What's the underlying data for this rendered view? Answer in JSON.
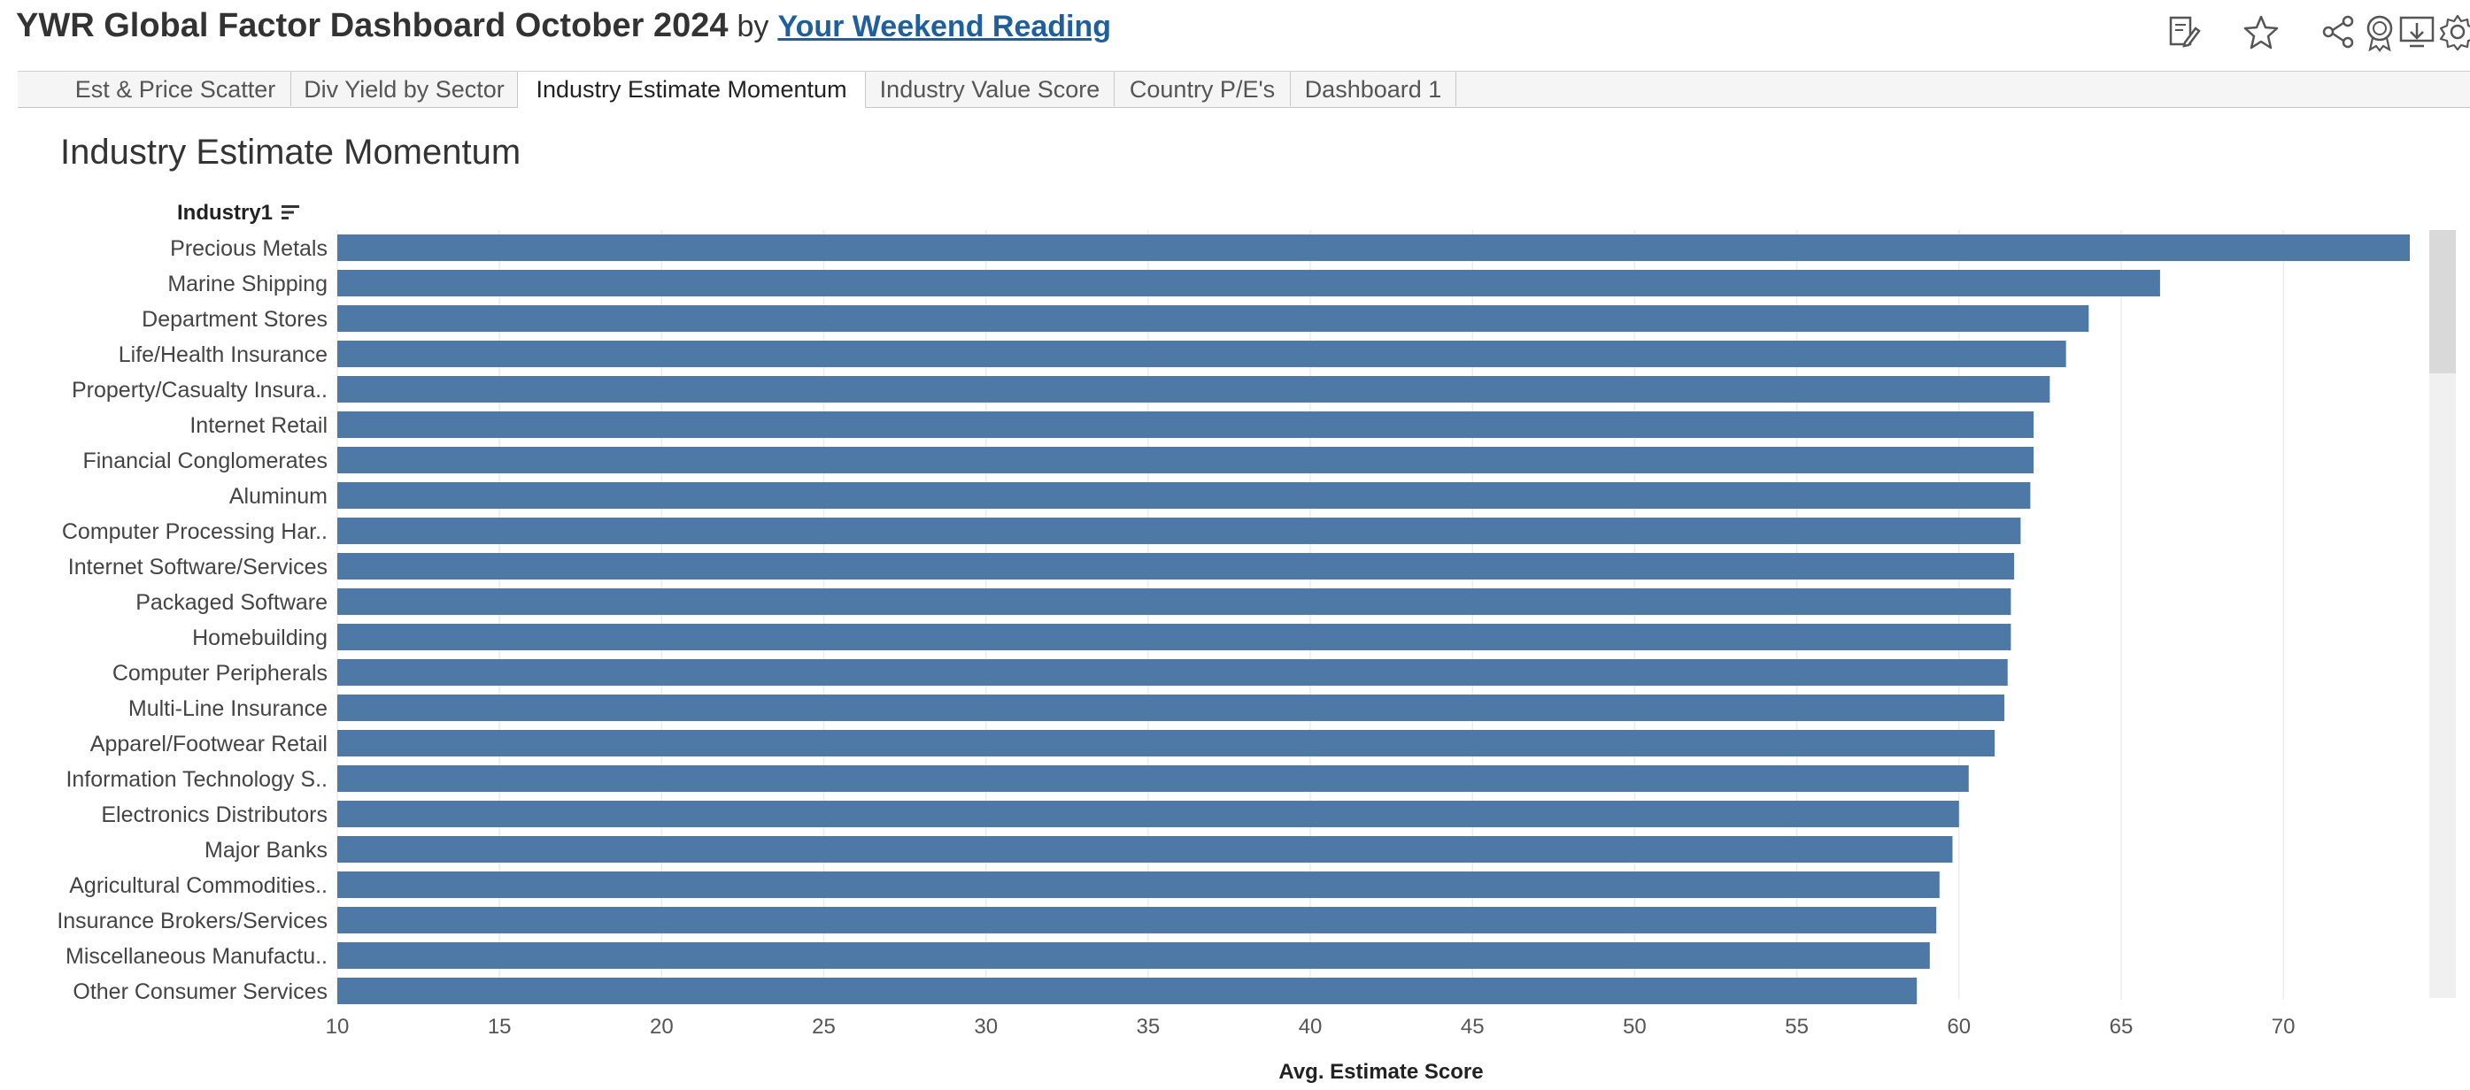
{
  "header": {
    "title": "YWR Global Factor Dashboard October 2024",
    "by": "by",
    "link": "Your Weekend Reading"
  },
  "toolbar": {
    "icons": [
      "edit-icon",
      "star-icon",
      "share-icon",
      "download-icon",
      "badge-icon",
      "settings-icon"
    ]
  },
  "tabs": [
    {
      "label": "Est & Price Scatter",
      "active": false
    },
    {
      "label": "Div Yield by Sector",
      "active": false
    },
    {
      "label": "Industry Estimate Momentum",
      "active": true
    },
    {
      "label": "Industry Value Score",
      "active": false
    },
    {
      "label": "Country P/E's",
      "active": false
    },
    {
      "label": "Dashboard 1",
      "active": false
    }
  ],
  "sheet": {
    "title": "Industry Estimate Momentum",
    "field_header": "Industry1"
  },
  "colors": {
    "bar": "#4e79a7",
    "link": "#1f5f9c"
  },
  "chart_data": {
    "type": "bar",
    "orientation": "horizontal",
    "categories": [
      "Precious Metals",
      "Marine Shipping",
      "Department Stores",
      "Life/Health Insurance",
      "Property/Casualty Insura..",
      "Internet Retail",
      "Financial Conglomerates",
      "Aluminum",
      "Computer Processing Har..",
      "Internet Software/Services",
      "Packaged Software",
      "Homebuilding",
      "Computer Peripherals",
      "Multi-Line Insurance",
      "Apparel/Footwear Retail",
      "Information Technology S..",
      "Electronics Distributors",
      "Major Banks",
      "Agricultural Commodities..",
      "Insurance Brokers/Services",
      "Miscellaneous Manufactu..",
      "Other Consumer Services"
    ],
    "values": [
      73.9,
      66.2,
      64.0,
      63.3,
      62.8,
      62.3,
      62.3,
      62.2,
      61.9,
      61.7,
      61.6,
      61.6,
      61.5,
      61.4,
      61.1,
      60.3,
      60.0,
      59.8,
      59.4,
      59.3,
      59.1,
      58.7
    ],
    "xlabel": "Avg. Estimate Score",
    "xlim": [
      10,
      74.5
    ],
    "xticks": [
      10,
      15,
      20,
      25,
      30,
      35,
      40,
      45,
      50,
      55,
      60,
      65,
      70
    ],
    "grid": true
  }
}
